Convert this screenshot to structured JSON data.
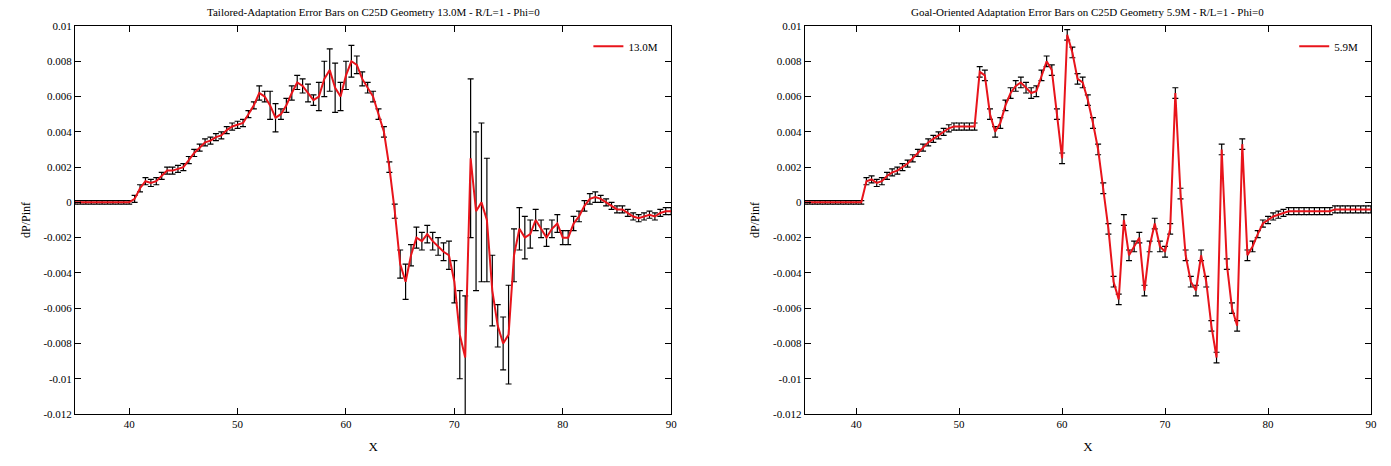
{
  "chart_data": [
    {
      "type": "line",
      "title": "Tailored-Adaptation Error Bars on C25D Geometry 13.0M - R/L=1 - Phi=0",
      "x_label": "X",
      "y_label": "dP/Pinf",
      "x": [
        35,
        35.5,
        36,
        36.5,
        37,
        37.5,
        38,
        38.5,
        39,
        39.5,
        40,
        40.5,
        41,
        41.5,
        42,
        42.5,
        43,
        43.5,
        44,
        44.5,
        45,
        45.5,
        46,
        46.5,
        47,
        47.5,
        48,
        48.5,
        49,
        49.5,
        50,
        50.5,
        51,
        51.5,
        52,
        52.5,
        53,
        53.5,
        54,
        54.5,
        55,
        55.5,
        56,
        56.5,
        57,
        57.5,
        58,
        58.5,
        59,
        59.5,
        60,
        60.5,
        61,
        61.5,
        62,
        62.5,
        63,
        63.5,
        64,
        64.5,
        65,
        65.5,
        66,
        66.5,
        67,
        67.5,
        68,
        68.5,
        69,
        69.5,
        70,
        70.5,
        71,
        71.5,
        72,
        72.5,
        73,
        73.5,
        74,
        74.5,
        75,
        75.5,
        76,
        76.5,
        77,
        77.5,
        78,
        78.5,
        79,
        79.5,
        80,
        80.5,
        81,
        81.5,
        82,
        82.5,
        83,
        83.5,
        84,
        84.5,
        85,
        85.5,
        86,
        86.5,
        87,
        87.5,
        88,
        88.5,
        89,
        89.5,
        90
      ],
      "series": [
        {
          "name": "13.0M",
          "color": "#e8141b",
          "values": [
            0,
            0,
            0,
            0,
            0,
            0,
            0,
            0,
            0,
            0,
            0,
            0.0002,
            0.0008,
            0.0012,
            0.0011,
            0.0012,
            0.0015,
            0.0018,
            0.0018,
            0.0019,
            0.002,
            0.0024,
            0.0028,
            0.0031,
            0.0034,
            0.0035,
            0.0037,
            0.0038,
            0.0041,
            0.0043,
            0.0044,
            0.0045,
            0.005,
            0.0055,
            0.0062,
            0.006,
            0.0055,
            0.0048,
            0.005,
            0.0055,
            0.0062,
            0.0068,
            0.0066,
            0.0062,
            0.0058,
            0.006,
            0.007,
            0.0075,
            0.0065,
            0.006,
            0.0072,
            0.008,
            0.0078,
            0.007,
            0.0065,
            0.006,
            0.005,
            0.004,
            0.002,
            -0.0005,
            -0.0035,
            -0.0045,
            -0.003,
            -0.002,
            -0.0022,
            -0.0018,
            -0.0022,
            -0.0025,
            -0.0028,
            -0.003,
            -0.0045,
            -0.0075,
            -0.0088,
            0.0025,
            -0.0005,
            0,
            -0.001,
            -0.005,
            -0.007,
            -0.008,
            -0.0075,
            -0.003,
            -0.0015,
            -0.002,
            -0.0018,
            -0.001,
            -0.0015,
            -0.002,
            -0.0015,
            -0.0012,
            -0.002,
            -0.002,
            -0.0012,
            -0.0008,
            -0.0002,
            0.0002,
            0.0003,
            0.0002,
            0,
            -0.0002,
            -0.0004,
            -0.0004,
            -0.0006,
            -0.0008,
            -0.0009,
            -0.0008,
            -0.0007,
            -0.0008,
            -0.0006,
            -0.0005,
            -0.0005
          ],
          "error": [
            0.0001,
            0.0001,
            0.0001,
            0.0001,
            0.0001,
            0.0001,
            0.0001,
            0.0001,
            0.0001,
            0.0001,
            0.0001,
            0.0002,
            0.0002,
            0.0002,
            0.0002,
            0.0002,
            0.0002,
            0.0002,
            0.0002,
            0.0002,
            0.0002,
            0.0002,
            0.0002,
            0.0002,
            0.0002,
            0.0002,
            0.0002,
            0.0002,
            0.0002,
            0.0002,
            0.0002,
            0.0002,
            0.0002,
            0.0002,
            0.0004,
            0.0003,
            0.0008,
            0.0008,
            0.0003,
            0.0004,
            0.0004,
            0.0004,
            0.0004,
            0.0005,
            0.0003,
            0.0008,
            0.001,
            0.0012,
            0.0014,
            0.0008,
            0.0008,
            0.0009,
            0.0005,
            0.0004,
            0.0003,
            0.0003,
            0.0003,
            0.0003,
            0.0003,
            0.0004,
            0.0008,
            0.001,
            0.0006,
            0.0006,
            0.0005,
            0.0005,
            0.0005,
            0.0005,
            0.0005,
            0.0008,
            0.0012,
            0.0025,
            0.0035,
            0.0045,
            0.0045,
            0.0045,
            0.0035,
            0.002,
            0.0012,
            0.0015,
            0.0028,
            0.0015,
            0.0012,
            0.0012,
            0.0008,
            0.0006,
            0.0005,
            0.0005,
            0.0005,
            0.0005,
            0.0004,
            0.0004,
            0.0004,
            0.0003,
            0.0003,
            0.0003,
            0.0003,
            0.0002,
            0.0002,
            0.0002,
            0.0002,
            0.0002,
            0.0002,
            0.0002,
            0.0002,
            0.0002,
            0.0002,
            0.0002,
            0.0002,
            0.0002,
            0.0002
          ]
        }
      ],
      "xlim": [
        35,
        90
      ],
      "xticks": [
        40,
        50,
        60,
        70,
        80,
        90
      ],
      "ylim": [
        -0.012,
        0.01
      ],
      "yticks": [
        -0.012,
        -0.01,
        -0.008,
        -0.006,
        -0.004,
        -0.002,
        0,
        0.002,
        0.004,
        0.006,
        0.008,
        0.01
      ],
      "grid": false,
      "legend": "upper right"
    },
    {
      "type": "line",
      "title": "Goal-Oriented Adaptation Error Bars on C25D Geometry 5.9M - R/L=1 - Phi=0",
      "x_label": "X",
      "y_label": "dP/Pinf",
      "x": [
        35,
        35.5,
        36,
        36.5,
        37,
        37.5,
        38,
        38.5,
        39,
        39.5,
        40,
        40.5,
        41,
        41.5,
        42,
        42.5,
        43,
        43.5,
        44,
        44.5,
        45,
        45.5,
        46,
        46.5,
        47,
        47.5,
        48,
        48.5,
        49,
        49.5,
        50,
        50.5,
        51,
        51.5,
        52,
        52.5,
        53,
        53.5,
        54,
        54.5,
        55,
        55.5,
        56,
        56.5,
        57,
        57.5,
        58,
        58.5,
        59,
        59.5,
        60,
        60.5,
        61,
        61.5,
        62,
        62.5,
        63,
        63.5,
        64,
        64.5,
        65,
        65.5,
        66,
        66.5,
        67,
        67.5,
        68,
        68.5,
        69,
        69.5,
        70,
        70.5,
        71,
        71.5,
        72,
        72.5,
        73,
        73.5,
        74,
        74.5,
        75,
        75.5,
        76,
        76.5,
        77,
        77.5,
        78,
        78.5,
        79,
        79.5,
        80,
        80.5,
        81,
        81.5,
        82,
        82.5,
        83,
        83.5,
        84,
        84.5,
        85,
        85.5,
        86,
        86.5,
        87,
        87.5,
        88,
        88.5,
        89,
        89.5,
        90
      ],
      "series": [
        {
          "name": "5.9M",
          "color": "#e8141b",
          "values": [
            0,
            0,
            0,
            0,
            0,
            0,
            0,
            0,
            0,
            0,
            0,
            0,
            0.0012,
            0.0013,
            0.0011,
            0.0012,
            0.0015,
            0.0017,
            0.0018,
            0.002,
            0.0022,
            0.0025,
            0.0028,
            0.0031,
            0.0034,
            0.0036,
            0.0038,
            0.004,
            0.0042,
            0.0043,
            0.0043,
            0.0043,
            0.0043,
            0.0043,
            0.0074,
            0.0072,
            0.005,
            0.004,
            0.0045,
            0.0055,
            0.0062,
            0.0066,
            0.0068,
            0.0065,
            0.0062,
            0.0063,
            0.0072,
            0.008,
            0.0075,
            0.005,
            0.0025,
            0.0095,
            0.0085,
            0.007,
            0.0068,
            0.0058,
            0.0045,
            0.003,
            0.0008,
            -0.0015,
            -0.0045,
            -0.0055,
            -0.001,
            -0.003,
            -0.0025,
            -0.002,
            -0.005,
            -0.0025,
            -0.0012,
            -0.0025,
            -0.0028,
            -0.0015,
            0.0062,
            0.0005,
            -0.003,
            -0.0045,
            -0.005,
            -0.003,
            -0.0045,
            -0.007,
            -0.0088,
            0.003,
            -0.0035,
            -0.006,
            -0.007,
            0.0033,
            -0.003,
            -0.0025,
            -0.0018,
            -0.0012,
            -0.001,
            -0.0008,
            -0.0007,
            -0.0006,
            -0.0005,
            -0.0005,
            -0.0005,
            -0.0005,
            -0.0005,
            -0.0005,
            -0.0005,
            -0.0005,
            -0.0005,
            -0.0004,
            -0.0004,
            -0.0004,
            -0.0004,
            -0.0004,
            -0.0004,
            -0.0004,
            -0.0004
          ],
          "error": [
            0.0001,
            0.0001,
            0.0001,
            0.0001,
            0.0001,
            0.0001,
            0.0001,
            0.0001,
            0.0001,
            0.0001,
            0.0001,
            0.0001,
            0.0002,
            0.0002,
            0.0002,
            0.0002,
            0.0002,
            0.0002,
            0.0002,
            0.0002,
            0.0002,
            0.0002,
            0.0002,
            0.0002,
            0.0002,
            0.0002,
            0.0002,
            0.0002,
            0.0002,
            0.0002,
            0.0002,
            0.0002,
            0.0002,
            0.0002,
            0.0003,
            0.0003,
            0.0003,
            0.0003,
            0.0003,
            0.0003,
            0.0003,
            0.0003,
            0.0003,
            0.0003,
            0.0003,
            0.0003,
            0.0003,
            0.0003,
            0.0003,
            0.0003,
            0.0003,
            0.0003,
            0.0003,
            0.0003,
            0.0003,
            0.0003,
            0.0003,
            0.0003,
            0.0003,
            0.0003,
            0.0003,
            0.0003,
            0.0003,
            0.0003,
            0.0003,
            0.0003,
            0.0003,
            0.0003,
            0.0003,
            0.0003,
            0.0003,
            0.0003,
            0.0003,
            0.0003,
            0.0003,
            0.0003,
            0.0003,
            0.0003,
            0.0003,
            0.0003,
            0.0003,
            0.0003,
            0.0003,
            0.0003,
            0.0003,
            0.0003,
            0.0003,
            0.0003,
            0.0002,
            0.0002,
            0.0002,
            0.0002,
            0.0002,
            0.0002,
            0.0002,
            0.0002,
            0.0002,
            0.0002,
            0.0002,
            0.0002,
            0.0002,
            0.0002,
            0.0002,
            0.0002,
            0.0002,
            0.0002,
            0.0002,
            0.0002,
            0.0002,
            0.0002,
            0.0002
          ]
        }
      ],
      "xlim": [
        35,
        90
      ],
      "xticks": [
        40,
        50,
        60,
        70,
        80,
        90
      ],
      "ylim": [
        -0.012,
        0.01
      ],
      "yticks": [
        -0.012,
        -0.01,
        -0.008,
        -0.006,
        -0.004,
        -0.002,
        0,
        0.002,
        0.004,
        0.006,
        0.008,
        0.01
      ],
      "grid": false,
      "legend": "upper right"
    }
  ]
}
